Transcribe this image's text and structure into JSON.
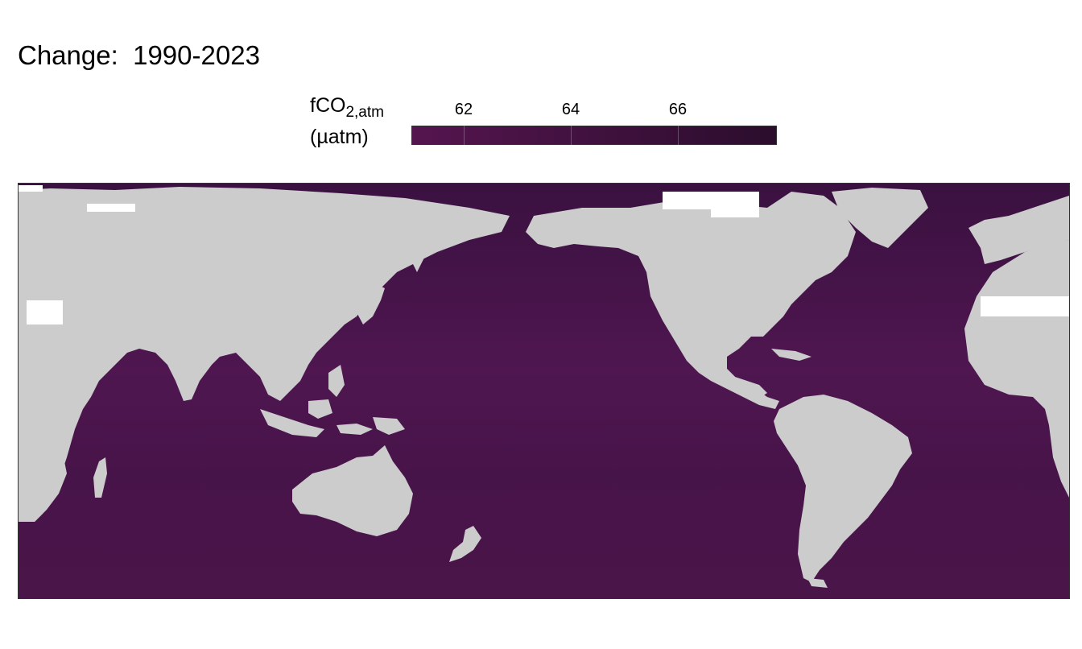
{
  "title": "Change:  1990-2023",
  "legend": {
    "title_main": "fCO",
    "title_sub": "2,atm",
    "unit": "(µatm)",
    "ticks": [
      "62",
      "64",
      "66"
    ],
    "colors": [
      "#55154f",
      "#2b0d2d"
    ]
  },
  "map": {
    "ocean_color": "#3d1240",
    "ocean_color_tropics": "#521650",
    "land_color": "#cccccc",
    "ice_color": "#ffffff"
  }
}
